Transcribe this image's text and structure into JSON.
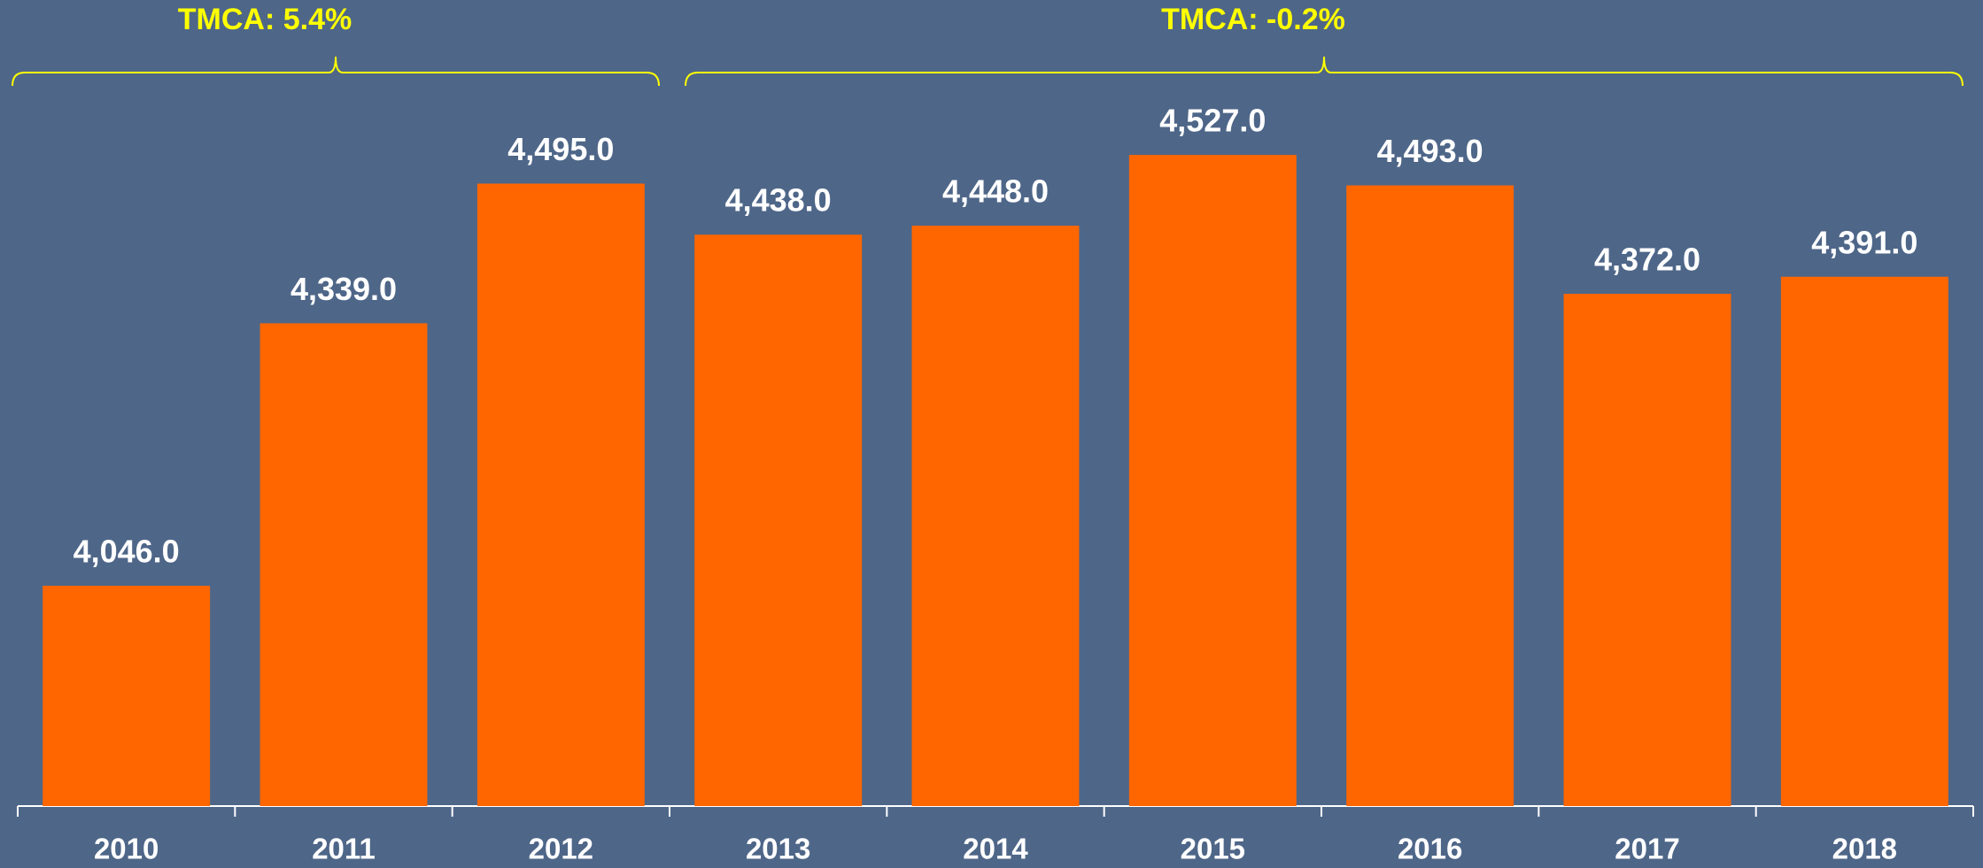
{
  "chart_data": {
    "type": "bar",
    "categories": [
      "2010",
      "2011",
      "2012",
      "2013",
      "2014",
      "2015",
      "2016",
      "2017",
      "2018"
    ],
    "values": [
      4046.0,
      4339.0,
      4495.0,
      4438.0,
      4448.0,
      4527.0,
      4493.0,
      4372.0,
      4391.0
    ],
    "value_labels": [
      "4,046.0",
      "4,339.0",
      "4,495.0",
      "4,438.0",
      "4,448.0",
      "4,527.0",
      "4,493.0",
      "4,372.0",
      "4,391.0"
    ],
    "color": "#ff6600",
    "ylim": [
      3800,
      4700
    ],
    "annotations": [
      {
        "text": "TMCA: 5.4%",
        "start": "2010",
        "end": "2012"
      },
      {
        "text": "TMCA: -0.2%",
        "start": "2013",
        "end": "2018"
      }
    ]
  }
}
